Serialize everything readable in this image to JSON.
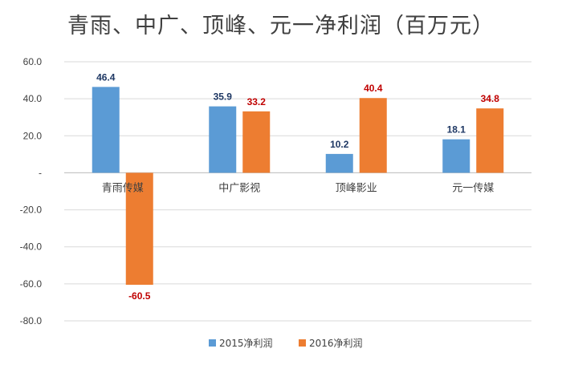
{
  "chart_data": {
    "type": "bar",
    "title": "青雨、中广、顶峰、元一净利润（百万元）",
    "categories": [
      "青雨传媒",
      "中广影视",
      "顶峰影业",
      "元一传媒"
    ],
    "series": [
      {
        "name": "2015净利润",
        "color": "#5B9BD5",
        "label_color": "#1F3864",
        "values": [
          46.4,
          35.9,
          10.2,
          18.1
        ],
        "labels": [
          "46.4",
          "35.9",
          "10.2",
          "18.1"
        ]
      },
      {
        "name": "2016净利润",
        "color": "#ED7D31",
        "label_color": "#C00000",
        "values": [
          -60.5,
          33.2,
          40.4,
          34.8
        ],
        "labels": [
          "-60.5",
          "33.2",
          "40.4",
          "34.8"
        ]
      }
    ],
    "ylim": [
      -80,
      60
    ],
    "yticks": [
      60,
      40,
      20,
      0,
      -20,
      -40,
      -60,
      -80
    ],
    "ytick_labels": [
      "60.0",
      "40.0",
      "20.0",
      "-",
      "-20.0",
      "-40.0",
      "-60.0",
      "-80.0"
    ],
    "grid": true,
    "legend": "bottom"
  }
}
